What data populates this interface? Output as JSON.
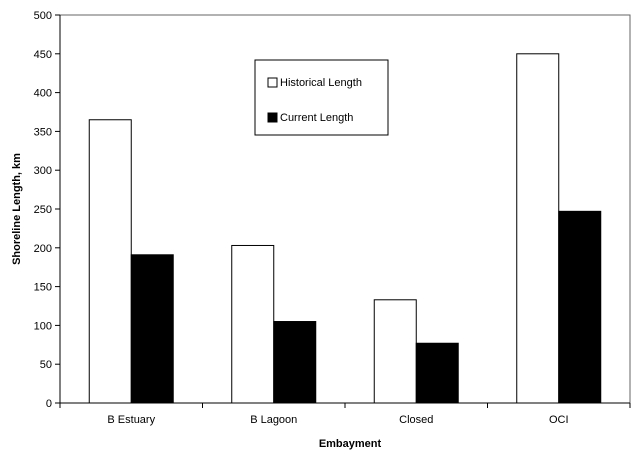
{
  "chart_data": {
    "type": "bar",
    "title": "",
    "xlabel": "Embayment",
    "ylabel": "Shoreline Length, km",
    "categories": [
      "B Estuary",
      "B Lagoon",
      "Closed",
      "OCI"
    ],
    "series": [
      {
        "name": "Historical Length",
        "values": [
          365,
          203,
          133,
          450
        ],
        "color": "#ffffff"
      },
      {
        "name": "Current Length",
        "values": [
          191,
          105,
          77,
          247
        ],
        "color": "#000000"
      }
    ],
    "ylim": [
      0,
      500
    ],
    "yticks": [
      "0",
      "50",
      "100",
      "150",
      "200",
      "250",
      "300",
      "350",
      "400",
      "450",
      "500"
    ],
    "grid": false,
    "legend_position": "top-center"
  }
}
